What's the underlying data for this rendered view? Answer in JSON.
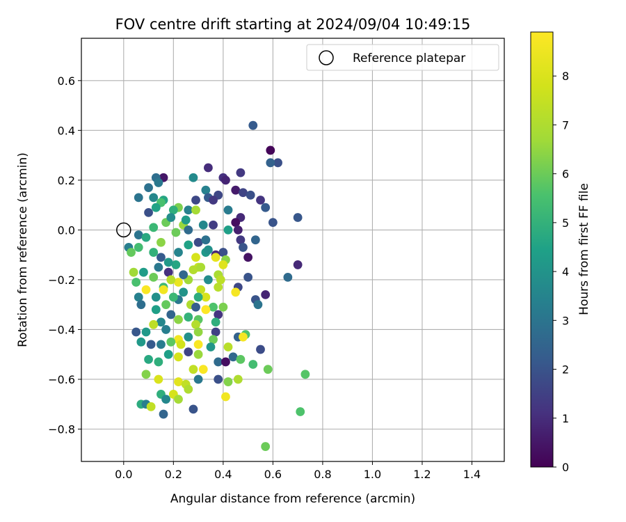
{
  "chart_data": {
    "type": "scatter",
    "title": "FOV centre drift starting at 2024/09/04 10:49:15",
    "xlabel": "Angular distance from reference (arcmin)",
    "ylabel": "Rotation from reference (arcmin)",
    "xlim": [
      -0.17,
      1.53
    ],
    "ylim": [
      -0.93,
      0.77
    ],
    "xticks": [
      0.0,
      0.2,
      0.4,
      0.6,
      0.8,
      1.0,
      1.2,
      1.4
    ],
    "xtick_labels": [
      "0.0",
      "0.2",
      "0.4",
      "0.6",
      "0.8",
      "1.0",
      "1.2",
      "1.4"
    ],
    "yticks": [
      -0.8,
      -0.6,
      -0.4,
      -0.2,
      0.0,
      0.2,
      0.4,
      0.6
    ],
    "ytick_labels": [
      "−0.8",
      "−0.6",
      "−0.4",
      "−0.2",
      "0.0",
      "0.2",
      "0.4",
      "0.6"
    ],
    "grid": true,
    "legend_position": "top-right",
    "reference": {
      "label": "Reference platepar",
      "x": 0.0,
      "y": 0.0
    },
    "colorbar": {
      "label": "Hours from first FF file",
      "colormap": "viridis",
      "range": [
        0,
        8.9
      ],
      "ticks": [
        0,
        1,
        2,
        3,
        4,
        5,
        6,
        7,
        8
      ],
      "tick_labels": [
        "0",
        "1",
        "2",
        "3",
        "4",
        "5",
        "6",
        "7",
        "8"
      ]
    },
    "points": [
      {
        "x": 0.52,
        "y": 0.42,
        "h": 2.2
      },
      {
        "x": 0.59,
        "y": 0.32,
        "h": 0.1
      },
      {
        "x": 0.62,
        "y": 0.27,
        "h": 1.9
      },
      {
        "x": 0.59,
        "y": 0.27,
        "h": 2.4
      },
      {
        "x": 0.34,
        "y": 0.25,
        "h": 1.0
      },
      {
        "x": 0.47,
        "y": 0.23,
        "h": 1.3
      },
      {
        "x": 0.4,
        "y": 0.21,
        "h": 1.1
      },
      {
        "x": 0.41,
        "y": 0.2,
        "h": 0.8
      },
      {
        "x": 0.28,
        "y": 0.21,
        "h": 3.7
      },
      {
        "x": 0.16,
        "y": 0.21,
        "h": 0.5
      },
      {
        "x": 0.13,
        "y": 0.21,
        "h": 2.8
      },
      {
        "x": 0.14,
        "y": 0.19,
        "h": 3.1
      },
      {
        "x": 0.1,
        "y": 0.17,
        "h": 2.9
      },
      {
        "x": 0.33,
        "y": 0.16,
        "h": 3.4
      },
      {
        "x": 0.45,
        "y": 0.16,
        "h": 0.6
      },
      {
        "x": 0.48,
        "y": 0.15,
        "h": 1.6
      },
      {
        "x": 0.51,
        "y": 0.14,
        "h": 1.9
      },
      {
        "x": 0.38,
        "y": 0.14,
        "h": 1.7
      },
      {
        "x": 0.34,
        "y": 0.13,
        "h": 2.2
      },
      {
        "x": 0.36,
        "y": 0.12,
        "h": 1.3
      },
      {
        "x": 0.12,
        "y": 0.13,
        "h": 3.6
      },
      {
        "x": 0.06,
        "y": 0.13,
        "h": 3.0
      },
      {
        "x": 0.16,
        "y": 0.12,
        "h": 4.6
      },
      {
        "x": 0.29,
        "y": 0.12,
        "h": 1.7
      },
      {
        "x": 0.55,
        "y": 0.12,
        "h": 1.2
      },
      {
        "x": 0.42,
        "y": 0.08,
        "h": 3.2
      },
      {
        "x": 0.57,
        "y": 0.09,
        "h": 2.2
      },
      {
        "x": 0.15,
        "y": 0.11,
        "h": 5.5
      },
      {
        "x": 0.22,
        "y": 0.09,
        "h": 6.2
      },
      {
        "x": 0.2,
        "y": 0.08,
        "h": 4.9
      },
      {
        "x": 0.26,
        "y": 0.08,
        "h": 3.4
      },
      {
        "x": 0.29,
        "y": 0.08,
        "h": 6.8
      },
      {
        "x": 0.1,
        "y": 0.07,
        "h": 1.9
      },
      {
        "x": 0.13,
        "y": 0.09,
        "h": 4.5
      },
      {
        "x": 0.47,
        "y": 0.05,
        "h": 0.9
      },
      {
        "x": 0.7,
        "y": 0.05,
        "h": 2.1
      },
      {
        "x": 0.6,
        "y": 0.03,
        "h": 2.0
      },
      {
        "x": 0.45,
        "y": 0.03,
        "h": 0.3
      },
      {
        "x": 0.32,
        "y": 0.02,
        "h": 3.6
      },
      {
        "x": 0.17,
        "y": 0.03,
        "h": 6.0
      },
      {
        "x": 0.24,
        "y": 0.02,
        "h": 6.6
      },
      {
        "x": 0.12,
        "y": 0.01,
        "h": 5.2
      },
      {
        "x": 0.36,
        "y": 0.02,
        "h": 1.4
      },
      {
        "x": 0.26,
        "y": 0.0,
        "h": 2.7
      },
      {
        "x": 0.46,
        "y": 0.0,
        "h": 0.7
      },
      {
        "x": 0.42,
        "y": 0.0,
        "h": 4.4
      },
      {
        "x": 0.21,
        "y": -0.01,
        "h": 6.0
      },
      {
        "x": 0.06,
        "y": -0.02,
        "h": 3.0
      },
      {
        "x": 0.09,
        "y": -0.03,
        "h": 4.7
      },
      {
        "x": 0.47,
        "y": -0.04,
        "h": 1.3
      },
      {
        "x": 0.53,
        "y": -0.04,
        "h": 2.5
      },
      {
        "x": 0.3,
        "y": -0.05,
        "h": 1.8
      },
      {
        "x": 0.15,
        "y": -0.05,
        "h": 6.4
      },
      {
        "x": 0.02,
        "y": -0.07,
        "h": 3.3
      },
      {
        "x": 0.06,
        "y": -0.07,
        "h": 5.4
      },
      {
        "x": 0.03,
        "y": -0.09,
        "h": 5.9
      },
      {
        "x": 0.33,
        "y": -0.09,
        "h": 4.2
      },
      {
        "x": 0.4,
        "y": -0.09,
        "h": 1.9
      },
      {
        "x": 0.37,
        "y": -0.1,
        "h": 0.9
      },
      {
        "x": 0.48,
        "y": -0.07,
        "h": 2.0
      },
      {
        "x": 0.22,
        "y": -0.09,
        "h": 3.5
      },
      {
        "x": 0.15,
        "y": -0.11,
        "h": 2.2
      },
      {
        "x": 0.5,
        "y": -0.11,
        "h": 0.4
      },
      {
        "x": 0.37,
        "y": -0.11,
        "h": 8.3
      },
      {
        "x": 0.41,
        "y": -0.12,
        "h": 6.4
      },
      {
        "x": 0.29,
        "y": -0.11,
        "h": 7.9
      },
      {
        "x": 0.21,
        "y": -0.14,
        "h": 4.6
      },
      {
        "x": 0.4,
        "y": -0.14,
        "h": 8.1
      },
      {
        "x": 0.3,
        "y": -0.15,
        "h": 7.5
      },
      {
        "x": 0.04,
        "y": -0.17,
        "h": 6.7
      },
      {
        "x": 0.08,
        "y": -0.17,
        "h": 4.3
      },
      {
        "x": 0.18,
        "y": -0.17,
        "h": 1.1
      },
      {
        "x": 0.28,
        "y": -0.16,
        "h": 7.1
      },
      {
        "x": 0.38,
        "y": -0.18,
        "h": 6.9
      },
      {
        "x": 0.5,
        "y": -0.19,
        "h": 2.0
      },
      {
        "x": 0.66,
        "y": -0.19,
        "h": 2.7
      },
      {
        "x": 0.7,
        "y": -0.14,
        "h": 0.9
      },
      {
        "x": 0.12,
        "y": -0.19,
        "h": 6.0
      },
      {
        "x": 0.26,
        "y": -0.2,
        "h": 6.7
      },
      {
        "x": 0.39,
        "y": -0.2,
        "h": 7.3
      },
      {
        "x": 0.05,
        "y": -0.21,
        "h": 5.5
      },
      {
        "x": 0.22,
        "y": -0.21,
        "h": 8.4
      },
      {
        "x": 0.16,
        "y": -0.23,
        "h": 5.3
      },
      {
        "x": 0.46,
        "y": -0.23,
        "h": 1.7
      },
      {
        "x": 0.09,
        "y": -0.24,
        "h": 8.8
      },
      {
        "x": 0.16,
        "y": -0.24,
        "h": 8.6
      },
      {
        "x": 0.31,
        "y": -0.24,
        "h": 7.5
      },
      {
        "x": 0.38,
        "y": -0.23,
        "h": 7.2
      },
      {
        "x": 0.45,
        "y": -0.25,
        "h": 8.7
      },
      {
        "x": 0.57,
        "y": -0.26,
        "h": 0.8
      },
      {
        "x": 0.06,
        "y": -0.27,
        "h": 3.4
      },
      {
        "x": 0.13,
        "y": -0.27,
        "h": 3.9
      },
      {
        "x": 0.33,
        "y": -0.27,
        "h": 7.9
      },
      {
        "x": 0.22,
        "y": -0.28,
        "h": 3.1
      },
      {
        "x": 0.53,
        "y": -0.28,
        "h": 2.0
      },
      {
        "x": 0.07,
        "y": -0.3,
        "h": 2.8
      },
      {
        "x": 0.17,
        "y": -0.3,
        "h": 5.9
      },
      {
        "x": 0.27,
        "y": -0.3,
        "h": 7.0
      },
      {
        "x": 0.29,
        "y": -0.31,
        "h": 2.3
      },
      {
        "x": 0.36,
        "y": -0.31,
        "h": 5.6
      },
      {
        "x": 0.54,
        "y": -0.3,
        "h": 3.0
      },
      {
        "x": 0.13,
        "y": -0.32,
        "h": 4.4
      },
      {
        "x": 0.4,
        "y": -0.31,
        "h": 6.2
      },
      {
        "x": 0.33,
        "y": -0.32,
        "h": 8.9
      },
      {
        "x": 0.38,
        "y": -0.34,
        "h": 1.2
      },
      {
        "x": 0.19,
        "y": -0.34,
        "h": 2.5
      },
      {
        "x": 0.22,
        "y": -0.36,
        "h": 6.4
      },
      {
        "x": 0.3,
        "y": -0.36,
        "h": 5.8
      },
      {
        "x": 0.15,
        "y": -0.37,
        "h": 3.6
      },
      {
        "x": 0.37,
        "y": -0.37,
        "h": 4.9
      },
      {
        "x": 0.29,
        "y": -0.38,
        "h": 7.1
      },
      {
        "x": 0.12,
        "y": -0.38,
        "h": 7.3
      },
      {
        "x": 0.05,
        "y": -0.41,
        "h": 2.1
      },
      {
        "x": 0.09,
        "y": -0.41,
        "h": 4.2
      },
      {
        "x": 0.17,
        "y": -0.4,
        "h": 3.3
      },
      {
        "x": 0.3,
        "y": -0.41,
        "h": 6.5
      },
      {
        "x": 0.37,
        "y": -0.41,
        "h": 1.5
      },
      {
        "x": 0.26,
        "y": -0.43,
        "h": 3.9
      },
      {
        "x": 0.36,
        "y": -0.44,
        "h": 6.0
      },
      {
        "x": 0.49,
        "y": -0.42,
        "h": 5.6
      },
      {
        "x": 0.22,
        "y": -0.44,
        "h": 8.6
      },
      {
        "x": 0.46,
        "y": -0.43,
        "h": 2.4
      },
      {
        "x": 0.48,
        "y": -0.43,
        "h": 8.7
      },
      {
        "x": 0.07,
        "y": -0.45,
        "h": 4.2
      },
      {
        "x": 0.11,
        "y": -0.46,
        "h": 2.2
      },
      {
        "x": 0.15,
        "y": -0.46,
        "h": 3.2
      },
      {
        "x": 0.19,
        "y": -0.45,
        "h": 5.8
      },
      {
        "x": 0.23,
        "y": -0.46,
        "h": 7.8
      },
      {
        "x": 0.3,
        "y": -0.46,
        "h": 8.8
      },
      {
        "x": 0.42,
        "y": -0.47,
        "h": 7.2
      },
      {
        "x": 0.55,
        "y": -0.48,
        "h": 1.8
      },
      {
        "x": 0.26,
        "y": -0.49,
        "h": 1.6
      },
      {
        "x": 0.3,
        "y": -0.5,
        "h": 6.6
      },
      {
        "x": 0.22,
        "y": -0.51,
        "h": 7.9
      },
      {
        "x": 0.44,
        "y": -0.51,
        "h": 2.6
      },
      {
        "x": 0.1,
        "y": -0.52,
        "h": 4.7
      },
      {
        "x": 0.14,
        "y": -0.53,
        "h": 4.9
      },
      {
        "x": 0.38,
        "y": -0.53,
        "h": 2.7
      },
      {
        "x": 0.47,
        "y": -0.52,
        "h": 5.8
      },
      {
        "x": 0.52,
        "y": -0.54,
        "h": 5.4
      },
      {
        "x": 0.41,
        "y": -0.53,
        "h": 0.3
      },
      {
        "x": 0.28,
        "y": -0.56,
        "h": 7.4
      },
      {
        "x": 0.32,
        "y": -0.56,
        "h": 8.8
      },
      {
        "x": 0.58,
        "y": -0.56,
        "h": 6.0
      },
      {
        "x": 0.73,
        "y": -0.58,
        "h": 5.7
      },
      {
        "x": 0.09,
        "y": -0.58,
        "h": 6.3
      },
      {
        "x": 0.14,
        "y": -0.6,
        "h": 8.0
      },
      {
        "x": 0.3,
        "y": -0.6,
        "h": 3.1
      },
      {
        "x": 0.38,
        "y": -0.6,
        "h": 1.9
      },
      {
        "x": 0.46,
        "y": -0.6,
        "h": 7.0
      },
      {
        "x": 0.42,
        "y": -0.61,
        "h": 6.3
      },
      {
        "x": 0.22,
        "y": -0.61,
        "h": 8.2
      },
      {
        "x": 0.25,
        "y": -0.62,
        "h": 7.4
      },
      {
        "x": 0.26,
        "y": -0.64,
        "h": 7.0
      },
      {
        "x": 0.15,
        "y": -0.66,
        "h": 4.9
      },
      {
        "x": 0.2,
        "y": -0.66,
        "h": 7.9
      },
      {
        "x": 0.22,
        "y": -0.68,
        "h": 6.8
      },
      {
        "x": 0.17,
        "y": -0.68,
        "h": 3.6
      },
      {
        "x": 0.41,
        "y": -0.67,
        "h": 8.6
      },
      {
        "x": 0.07,
        "y": -0.7,
        "h": 4.8
      },
      {
        "x": 0.09,
        "y": -0.7,
        "h": 3.3
      },
      {
        "x": 0.11,
        "y": -0.71,
        "h": 7.4
      },
      {
        "x": 0.16,
        "y": -0.74,
        "h": 2.5
      },
      {
        "x": 0.28,
        "y": -0.72,
        "h": 2.0
      },
      {
        "x": 0.71,
        "y": -0.73,
        "h": 5.6
      },
      {
        "x": 0.57,
        "y": -0.87,
        "h": 6.0
      },
      {
        "x": 0.24,
        "y": -0.25,
        "h": 4.0
      },
      {
        "x": 0.34,
        "y": -0.2,
        "h": 3.8
      },
      {
        "x": 0.18,
        "y": -0.13,
        "h": 4.2
      },
      {
        "x": 0.26,
        "y": -0.06,
        "h": 4.5
      },
      {
        "x": 0.12,
        "y": -0.09,
        "h": 5.0
      },
      {
        "x": 0.2,
        "y": -0.27,
        "h": 5.2
      },
      {
        "x": 0.3,
        "y": -0.27,
        "h": 4.8
      },
      {
        "x": 0.14,
        "y": -0.15,
        "h": 3.1
      },
      {
        "x": 0.24,
        "y": -0.18,
        "h": 2.6
      },
      {
        "x": 0.33,
        "y": -0.04,
        "h": 2.9
      },
      {
        "x": 0.19,
        "y": 0.05,
        "h": 3.8
      },
      {
        "x": 0.25,
        "y": 0.04,
        "h": 4.3
      },
      {
        "x": 0.31,
        "y": -0.15,
        "h": 6.9
      },
      {
        "x": 0.19,
        "y": -0.2,
        "h": 7.2
      },
      {
        "x": 0.26,
        "y": -0.35,
        "h": 5.0
      },
      {
        "x": 0.35,
        "y": -0.47,
        "h": 4.1
      },
      {
        "x": 0.18,
        "y": -0.5,
        "h": 4.4
      },
      {
        "x": 0.34,
        "y": -0.08,
        "h": 3.9
      }
    ]
  }
}
